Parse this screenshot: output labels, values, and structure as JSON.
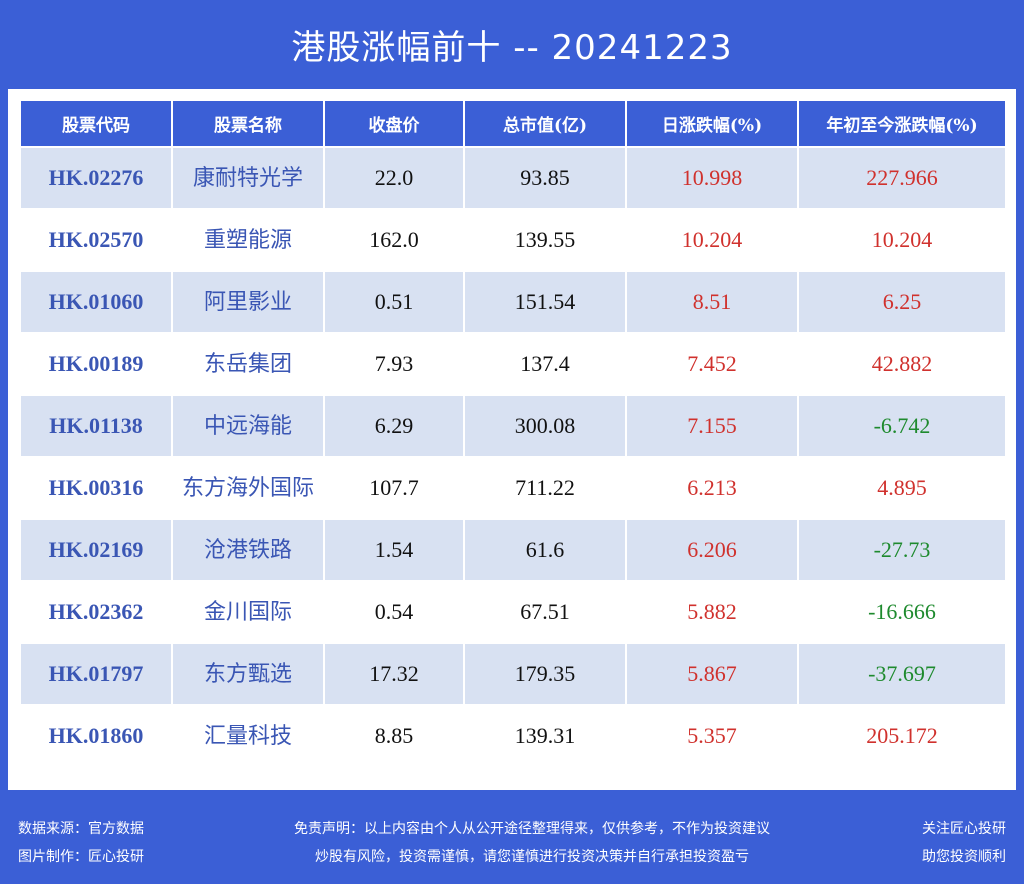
{
  "title": "港股涨幅前十 -- 20241223",
  "headers": [
    "股票代码",
    "股票名称",
    "收盘价",
    "总市值(亿)",
    "日涨跌幅(%)",
    "年初至今涨跌幅(%)"
  ],
  "rows": [
    {
      "code": "HK.02276",
      "name": "康耐特光学",
      "close": "22.0",
      "cap": "93.85",
      "day": "10.998",
      "ytd": "227.966"
    },
    {
      "code": "HK.02570",
      "name": "重塑能源",
      "close": "162.0",
      "cap": "139.55",
      "day": "10.204",
      "ytd": "10.204"
    },
    {
      "code": "HK.01060",
      "name": "阿里影业",
      "close": "0.51",
      "cap": "151.54",
      "day": "8.51",
      "ytd": "6.25"
    },
    {
      "code": "HK.00189",
      "name": "东岳集团",
      "close": "7.93",
      "cap": "137.4",
      "day": "7.452",
      "ytd": "42.882"
    },
    {
      "code": "HK.01138",
      "name": "中远海能",
      "close": "6.29",
      "cap": "300.08",
      "day": "7.155",
      "ytd": "-6.742"
    },
    {
      "code": "HK.00316",
      "name": "东方海外国际",
      "close": "107.7",
      "cap": "711.22",
      "day": "6.213",
      "ytd": "4.895"
    },
    {
      "code": "HK.02169",
      "name": "沧港铁路",
      "close": "1.54",
      "cap": "61.6",
      "day": "6.206",
      "ytd": "-27.73"
    },
    {
      "code": "HK.02362",
      "name": "金川国际",
      "close": "0.54",
      "cap": "67.51",
      "day": "5.882",
      "ytd": "-16.666"
    },
    {
      "code": "HK.01797",
      "name": "东方甄选",
      "close": "17.32",
      "cap": "179.35",
      "day": "5.867",
      "ytd": "-37.697"
    },
    {
      "code": "HK.01860",
      "name": "汇量科技",
      "close": "8.85",
      "cap": "139.31",
      "day": "5.357",
      "ytd": "205.172"
    }
  ],
  "footer": {
    "source": "数据来源：官方数据",
    "maker": "图片制作：匠心投研",
    "disclaimer1": "免责声明：以上内容由个人从公开途径整理得来，仅供参考，不作为投资建议",
    "disclaimer2": "炒股有风险，投资需谨慎，请您谨慎进行投资决策并自行承担投资盈亏",
    "follow": "关注匠心投研",
    "help": "助您投资顺利"
  },
  "colors": {
    "background": "#3b5fd6",
    "header": "#3b5fd6",
    "row_alt": "#d8e1f2",
    "positive": "#d0312d",
    "negative": "#1e8a2e",
    "code_text": "#3a56b4"
  }
}
